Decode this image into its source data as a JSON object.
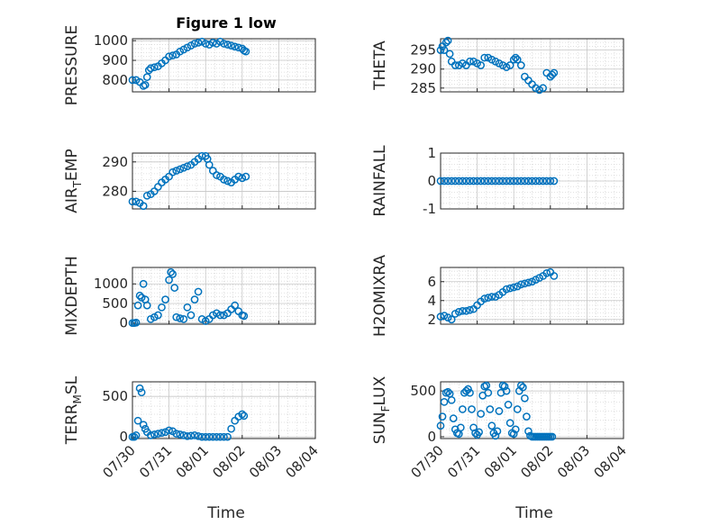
{
  "figure": {
    "title": "Figure 1 low",
    "xlabel": "Time",
    "date_ticks": [
      "07/30",
      "07/31",
      "08/01",
      "08/02",
      "08/03",
      "08/04"
    ],
    "marker_color": "#0072BD"
  },
  "chart_data": [
    {
      "type": "scatter",
      "ylabel": "PRESSURE",
      "ylabel_sub": "",
      "ylabel_after": "",
      "ylim": [
        740,
        1010
      ],
      "yticks": [
        800,
        900,
        1000
      ],
      "show_xticklabels": false,
      "x": [
        0.0,
        0.1,
        0.2,
        0.3,
        0.35,
        0.4,
        0.45,
        0.5,
        0.6,
        0.7,
        0.8,
        0.9,
        1.0,
        1.1,
        1.2,
        1.3,
        1.4,
        1.5,
        1.6,
        1.7,
        1.8,
        1.9,
        2.0,
        2.1,
        2.2,
        2.3,
        2.4,
        2.5,
        2.6,
        2.7,
        2.8,
        2.9,
        3.0,
        3.05,
        3.1
      ],
      "y": [
        800,
        800,
        790,
        770,
        775,
        815,
        850,
        860,
        865,
        870,
        885,
        900,
        920,
        925,
        930,
        945,
        955,
        965,
        975,
        985,
        990,
        995,
        985,
        980,
        990,
        985,
        995,
        985,
        980,
        975,
        970,
        965,
        960,
        950,
        945
      ]
    },
    {
      "type": "scatter",
      "ylabel": "THETA",
      "ylabel_sub": "",
      "ylabel_after": "",
      "ylim": [
        284,
        298
      ],
      "yticks": [
        285,
        290,
        295
      ],
      "show_xticklabels": false,
      "x": [
        0.0,
        0.05,
        0.1,
        0.15,
        0.2,
        0.25,
        0.3,
        0.4,
        0.5,
        0.6,
        0.7,
        0.8,
        0.9,
        1.0,
        1.1,
        1.2,
        1.3,
        1.4,
        1.5,
        1.6,
        1.7,
        1.8,
        1.9,
        2.0,
        2.05,
        2.1,
        2.2,
        2.3,
        2.4,
        2.5,
        2.6,
        2.7,
        2.8,
        2.9,
        3.0,
        3.05,
        3.1
      ],
      "y": [
        295,
        296,
        295,
        297,
        297.5,
        294,
        292,
        291,
        291,
        291.5,
        291,
        292,
        292,
        291.5,
        291,
        293,
        293,
        292.5,
        292,
        291.5,
        291,
        290.5,
        291,
        292.5,
        293,
        292.5,
        291,
        288,
        287,
        286,
        285,
        284.5,
        285,
        289,
        288,
        288.5,
        289
      ]
    },
    {
      "type": "scatter",
      "ylabel": "AIR",
      "ylabel_sub": "T",
      "ylabel_after": "EMP",
      "ylim": [
        274,
        293
      ],
      "yticks": [
        280,
        290
      ],
      "show_xticklabels": false,
      "x": [
        0.0,
        0.1,
        0.2,
        0.3,
        0.4,
        0.5,
        0.6,
        0.7,
        0.8,
        0.9,
        1.0,
        1.1,
        1.2,
        1.3,
        1.4,
        1.5,
        1.6,
        1.7,
        1.8,
        1.9,
        2.0,
        2.05,
        2.1,
        2.2,
        2.3,
        2.4,
        2.5,
        2.6,
        2.7,
        2.8,
        2.9,
        3.0,
        3.1
      ],
      "y": [
        276.5,
        276.5,
        276,
        275,
        278.5,
        279,
        280,
        281.5,
        283,
        284,
        285,
        286.5,
        287,
        287.5,
        288,
        288.5,
        289,
        290,
        291,
        292,
        292,
        291,
        289,
        287,
        285.5,
        285,
        284,
        283.5,
        283,
        284,
        285,
        284.5,
        285
      ]
    },
    {
      "type": "scatter",
      "ylabel": "RAINFALL",
      "ylabel_sub": "",
      "ylabel_after": "",
      "ylim": [
        -1,
        1
      ],
      "yticks": [
        -1,
        0,
        1
      ],
      "show_xticklabels": false,
      "x": [
        0.0,
        0.1,
        0.2,
        0.3,
        0.4,
        0.5,
        0.6,
        0.7,
        0.8,
        0.9,
        1.0,
        1.1,
        1.2,
        1.3,
        1.4,
        1.5,
        1.6,
        1.7,
        1.8,
        1.9,
        2.0,
        2.1,
        2.2,
        2.3,
        2.4,
        2.5,
        2.6,
        2.7,
        2.8,
        2.9,
        3.0,
        3.1
      ],
      "y": [
        0,
        0,
        0,
        0,
        0,
        0,
        0,
        0,
        0,
        0,
        0,
        0,
        0,
        0,
        0,
        0,
        0,
        0,
        0,
        0,
        0,
        0,
        0,
        0,
        0,
        0,
        0,
        0,
        0,
        0,
        0,
        0
      ]
    },
    {
      "type": "scatter",
      "ylabel": "MIXDEPTH",
      "ylabel_sub": "",
      "ylabel_after": "",
      "ylim": [
        -30,
        1420
      ],
      "yticks": [
        0,
        500,
        1000
      ],
      "show_xticklabels": false,
      "x": [
        0.0,
        0.05,
        0.1,
        0.15,
        0.2,
        0.25,
        0.3,
        0.35,
        0.4,
        0.5,
        0.6,
        0.7,
        0.8,
        0.9,
        1.0,
        1.05,
        1.1,
        1.15,
        1.2,
        1.3,
        1.4,
        1.5,
        1.6,
        1.7,
        1.8,
        1.9,
        2.0,
        2.1,
        2.2,
        2.3,
        2.4,
        2.5,
        2.6,
        2.7,
        2.8,
        2.9,
        3.0,
        3.05
      ],
      "y": [
        0,
        0,
        10,
        450,
        700,
        650,
        1000,
        600,
        450,
        100,
        150,
        200,
        400,
        600,
        1100,
        1300,
        1250,
        900,
        150,
        120,
        100,
        400,
        200,
        600,
        800,
        100,
        50,
        100,
        200,
        250,
        200,
        200,
        250,
        350,
        450,
        300,
        200,
        180
      ]
    },
    {
      "type": "scatter",
      "ylabel": "H2OMIXRA",
      "ylabel_sub": "",
      "ylabel_after": "",
      "ylim": [
        1.5,
        7.5
      ],
      "yticks": [
        2,
        4,
        6
      ],
      "show_xticklabels": false,
      "x": [
        0.0,
        0.1,
        0.2,
        0.3,
        0.4,
        0.5,
        0.6,
        0.7,
        0.8,
        0.9,
        1.0,
        1.1,
        1.2,
        1.3,
        1.4,
        1.5,
        1.6,
        1.7,
        1.8,
        1.9,
        2.0,
        2.1,
        2.2,
        2.3,
        2.4,
        2.5,
        2.6,
        2.7,
        2.8,
        2.9,
        3.0,
        3.1
      ],
      "y": [
        2.3,
        2.4,
        2.2,
        2.0,
        2.6,
        2.8,
        2.9,
        2.9,
        3.0,
        3.1,
        3.5,
        3.9,
        4.2,
        4.3,
        4.4,
        4.4,
        4.6,
        4.9,
        5.2,
        5.3,
        5.4,
        5.5,
        5.7,
        5.8,
        5.9,
        6.0,
        6.2,
        6.4,
        6.6,
        6.9,
        7.0,
        6.6
      ]
    },
    {
      "type": "scatter",
      "ylabel": "TERR",
      "ylabel_sub": "M",
      "ylabel_after": "SL",
      "ylim": [
        -20,
        680
      ],
      "yticks": [
        0,
        500
      ],
      "show_xticklabels": true,
      "x": [
        0.0,
        0.05,
        0.1,
        0.15,
        0.2,
        0.25,
        0.3,
        0.35,
        0.4,
        0.5,
        0.6,
        0.7,
        0.8,
        0.9,
        1.0,
        1.1,
        1.2,
        1.3,
        1.4,
        1.5,
        1.6,
        1.7,
        1.8,
        1.9,
        2.0,
        2.1,
        2.2,
        2.3,
        2.4,
        2.5,
        2.6,
        2.7,
        2.8,
        2.9,
        3.0,
        3.05
      ],
      "y": [
        0,
        0,
        20,
        200,
        600,
        550,
        150,
        100,
        60,
        20,
        30,
        40,
        50,
        60,
        80,
        70,
        40,
        30,
        20,
        10,
        15,
        20,
        10,
        0,
        0,
        0,
        0,
        0,
        0,
        0,
        0,
        100,
        200,
        250,
        280,
        260
      ]
    },
    {
      "type": "scatter",
      "ylabel": "SUN",
      "ylabel_sub": "F",
      "ylabel_after": "LUX",
      "ylim": [
        -20,
        600
      ],
      "yticks": [
        0,
        500
      ],
      "show_xticklabels": true,
      "x": [
        0.0,
        0.05,
        0.1,
        0.15,
        0.2,
        0.25,
        0.3,
        0.35,
        0.4,
        0.45,
        0.5,
        0.55,
        0.6,
        0.65,
        0.7,
        0.75,
        0.8,
        0.85,
        0.9,
        0.95,
        1.0,
        1.05,
        1.1,
        1.15,
        1.2,
        1.25,
        1.3,
        1.35,
        1.4,
        1.45,
        1.5,
        1.55,
        1.6,
        1.65,
        1.7,
        1.75,
        1.8,
        1.85,
        1.9,
        1.95,
        2.0,
        2.05,
        2.1,
        2.15,
        2.2,
        2.25,
        2.3,
        2.35,
        2.4,
        2.45,
        2.5,
        2.55,
        2.6,
        2.65,
        2.7,
        2.75,
        2.8,
        2.85,
        2.9,
        2.95,
        3.0,
        3.05
      ],
      "y": [
        120,
        220,
        380,
        480,
        490,
        470,
        400,
        200,
        80,
        40,
        30,
        100,
        300,
        480,
        500,
        520,
        480,
        300,
        100,
        40,
        20,
        50,
        250,
        450,
        550,
        560,
        480,
        300,
        120,
        40,
        10,
        60,
        280,
        480,
        560,
        550,
        500,
        350,
        150,
        40,
        30,
        80,
        300,
        500,
        560,
        540,
        420,
        220,
        60,
        10,
        0,
        0,
        0,
        0,
        0,
        0,
        0,
        0,
        0,
        0,
        0,
        0
      ]
    }
  ]
}
